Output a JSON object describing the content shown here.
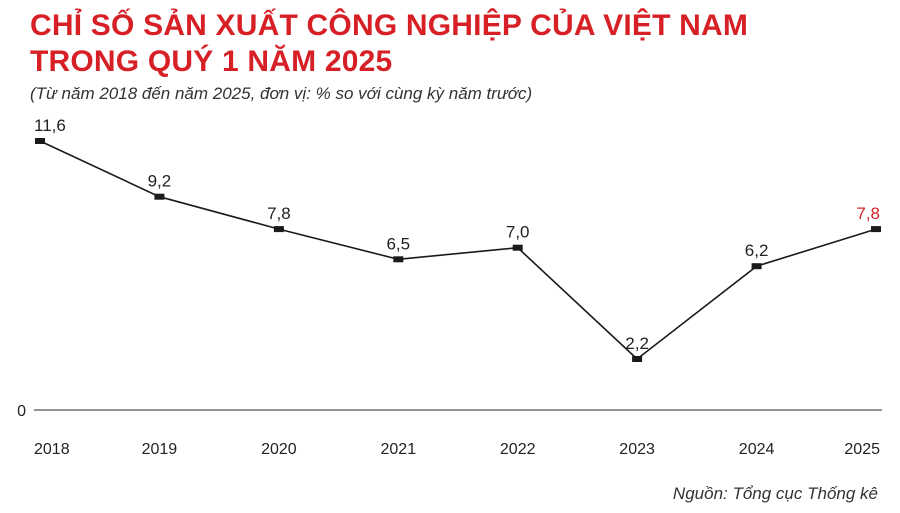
{
  "chart_data": {
    "type": "line",
    "title_lines": [
      "CHỈ SỐ SẢN XUẤT CÔNG NGHIỆP CỦA VIỆT NAM",
      "TRONG QUÝ 1 NĂM 2025"
    ],
    "subtitle": "(Từ năm 2018 đến năm 2025, đơn vị: % so với cùng kỳ năm trước)",
    "categories": [
      "2018",
      "2019",
      "2020",
      "2021",
      "2022",
      "2023",
      "2024",
      "2025"
    ],
    "values": [
      11.6,
      9.2,
      7.8,
      6.5,
      7.0,
      2.2,
      6.2,
      7.8
    ],
    "value_labels": [
      "11,6",
      "9,2",
      "7,8",
      "6,5",
      "7,0",
      "2,2",
      "6,2",
      "7,8"
    ],
    "highlight_index": 7,
    "y_tick_label": "0",
    "ylim": [
      0,
      11.6
    ],
    "grid": false,
    "legend": "none",
    "colors": {
      "line": "#1a1a1a",
      "highlight": "#d71f26",
      "title": "#d71f26"
    },
    "source": "Nguồn: Tổng cục Thống kê"
  }
}
